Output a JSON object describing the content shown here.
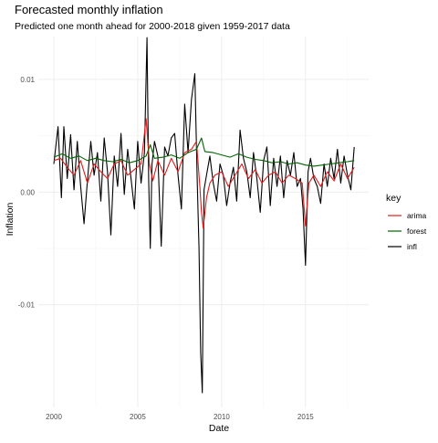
{
  "chart_data": {
    "type": "line",
    "title": "Forecasted monthly inflation",
    "subtitle": "Predicted one month ahead for 2000-2018 given 1959-2017 data",
    "xlabel": "Date",
    "ylabel": "Inflation",
    "xlim": [
      2000,
      2018
    ],
    "ylim": [
      -0.0178,
      0.0138
    ],
    "x_ticks": [
      2000,
      2005,
      2010,
      2015
    ],
    "x_tick_labels": [
      "2000",
      "2005",
      "2010",
      "2015"
    ],
    "y_ticks": [
      -0.01,
      0.0,
      0.01
    ],
    "y_tick_labels": [
      "-0.01",
      "0.00",
      "0.01"
    ],
    "grid": true,
    "legend": {
      "title": "key",
      "placement": "right"
    },
    "series": [
      {
        "name": "infl",
        "color": "#000000",
        "x": [
          2000.0,
          2000.25,
          2000.45,
          2000.6,
          2000.8,
          2001.0,
          2001.2,
          2001.4,
          2001.6,
          2001.8,
          2002.0,
          2002.2,
          2002.4,
          2002.6,
          2002.8,
          2003.0,
          2003.2,
          2003.4,
          2003.6,
          2003.8,
          2004.0,
          2004.2,
          2004.4,
          2004.6,
          2004.8,
          2005.0,
          2005.2,
          2005.4,
          2005.55,
          2005.65,
          2005.75,
          2005.85,
          2006.0,
          2006.2,
          2006.4,
          2006.6,
          2006.8,
          2007.0,
          2007.2,
          2007.4,
          2007.6,
          2007.8,
          2008.0,
          2008.2,
          2008.4,
          2008.55,
          2008.65,
          2008.75,
          2008.85,
          2008.95,
          2009.1,
          2009.3,
          2009.5,
          2009.7,
          2009.9,
          2010.1,
          2010.3,
          2010.5,
          2010.7,
          2010.9,
          2011.1,
          2011.3,
          2011.5,
          2011.7,
          2011.9,
          2012.1,
          2012.3,
          2012.5,
          2012.7,
          2012.9,
          2013.1,
          2013.3,
          2013.5,
          2013.7,
          2013.9,
          2014.1,
          2014.3,
          2014.5,
          2014.7,
          2014.85,
          2015.0,
          2015.15,
          2015.3,
          2015.5,
          2015.7,
          2015.9,
          2016.1,
          2016.3,
          2016.5,
          2016.7,
          2016.9,
          2017.1,
          2017.3,
          2017.5,
          2017.7,
          2017.9
        ],
        "y": [
          0.0025,
          0.0058,
          -0.0005,
          0.0058,
          0.0012,
          0.0051,
          0.0002,
          0.0045,
          0.0005,
          -0.0028,
          0.001,
          0.0045,
          0.0015,
          0.0035,
          -0.0008,
          0.0048,
          0.0018,
          -0.0038,
          0.0032,
          0.0005,
          0.0052,
          -0.0002,
          0.0038,
          0.0012,
          -0.0015,
          0.0045,
          0.0008,
          0.0035,
          0.0137,
          0.0012,
          -0.005,
          0.0025,
          0.0045,
          0.0032,
          -0.0048,
          0.004,
          0.0032,
          0.0048,
          0.0052,
          0.0015,
          -0.0015,
          0.0078,
          0.0035,
          0.0082,
          0.0105,
          0.0008,
          -0.005,
          -0.0142,
          -0.0178,
          0.0002,
          0.0015,
          0.0032,
          0.0008,
          -0.0008,
          0.0025,
          0.0015,
          -0.0012,
          0.0008,
          0.0022,
          -0.0008,
          0.0055,
          0.003,
          0.0018,
          -0.0005,
          0.0035,
          0.0012,
          -0.0018,
          0.0028,
          0.004,
          -0.0012,
          0.003,
          0.0005,
          0.0032,
          -0.0005,
          0.0028,
          0.0015,
          0.0035,
          0.0005,
          0.0012,
          -0.0015,
          -0.0065,
          0.0018,
          0.003,
          0.0012,
          0.0005,
          -0.001,
          0.0025,
          0.0005,
          0.003,
          0.0012,
          0.0038,
          0.0008,
          0.0032,
          0.0015,
          0.0002,
          0.004
        ]
      },
      {
        "name": "arima",
        "color": "#e41a1c",
        "x": [
          2000.0,
          2000.4,
          2000.8,
          2001.2,
          2001.6,
          2002.0,
          2002.4,
          2002.8,
          2003.2,
          2003.6,
          2004.0,
          2004.4,
          2004.8,
          2005.2,
          2005.5,
          2005.7,
          2005.9,
          2006.2,
          2006.6,
          2007.0,
          2007.4,
          2007.8,
          2008.2,
          2008.5,
          2008.7,
          2008.8,
          2008.9,
          2009.1,
          2009.3,
          2009.6,
          2010.0,
          2010.4,
          2010.8,
          2011.2,
          2011.6,
          2012.0,
          2012.4,
          2012.8,
          2013.2,
          2013.6,
          2014.0,
          2014.4,
          2014.8,
          2015.0,
          2015.2,
          2015.5,
          2015.9,
          2016.3,
          2016.7,
          2017.1,
          2017.5,
          2017.9
        ],
        "y": [
          0.0028,
          0.003,
          0.0022,
          0.0015,
          0.0028,
          0.0008,
          0.0025,
          0.0018,
          0.0012,
          0.0025,
          0.0028,
          0.0015,
          0.002,
          0.0025,
          0.0065,
          0.0025,
          0.001,
          0.0028,
          0.0015,
          0.003,
          0.0018,
          0.0035,
          0.0038,
          0.0045,
          0.0005,
          -0.0018,
          -0.0032,
          -0.0005,
          0.0008,
          0.0015,
          0.0018,
          0.0005,
          0.0015,
          0.0025,
          0.0012,
          0.002,
          0.0008,
          0.0015,
          0.0018,
          0.0008,
          0.0015,
          0.0012,
          0.0008,
          -0.003,
          0.0008,
          0.0015,
          0.0005,
          0.0018,
          0.001,
          0.0025,
          0.0012,
          0.0022
        ]
      },
      {
        "name": "forest",
        "color": "#006400",
        "x": [
          2000.0,
          2000.5,
          2001.0,
          2001.5,
          2002.0,
          2002.5,
          2003.0,
          2003.5,
          2004.0,
          2004.5,
          2005.0,
          2005.5,
          2005.75,
          2006.0,
          2006.5,
          2007.0,
          2007.5,
          2008.0,
          2008.5,
          2008.8,
          2009.0,
          2009.5,
          2010.0,
          2010.5,
          2011.0,
          2011.5,
          2012.0,
          2012.5,
          2013.0,
          2013.5,
          2014.0,
          2014.5,
          2015.0,
          2015.5,
          2016.0,
          2016.5,
          2017.0,
          2017.5,
          2017.9
        ],
        "y": [
          0.0031,
          0.0034,
          0.003,
          0.0032,
          0.0028,
          0.003,
          0.0028,
          0.0027,
          0.0029,
          0.0026,
          0.0028,
          0.0032,
          0.0042,
          0.003,
          0.0031,
          0.0033,
          0.003,
          0.0035,
          0.0038,
          0.0048,
          0.0036,
          0.0035,
          0.0033,
          0.0031,
          0.0034,
          0.0031,
          0.0029,
          0.0028,
          0.0026,
          0.0027,
          0.0025,
          0.0026,
          0.0024,
          0.0023,
          0.0024,
          0.0025,
          0.0026,
          0.0027,
          0.0028
        ]
      }
    ]
  }
}
